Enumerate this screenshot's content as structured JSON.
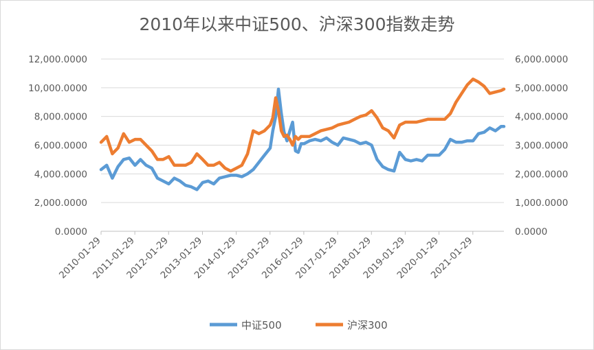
{
  "chart_data": {
    "type": "line",
    "title": "2010年以来中证500、沪深300指数走势",
    "x_tick_labels": [
      "2010-01-29",
      "2011-01-29",
      "2012-01-29",
      "2013-01-29",
      "2014-01-29",
      "2015-01-29",
      "2016-01-29",
      "2017-01-29",
      "2018-01-29",
      "2019-01-29",
      "2020-01-29",
      "2021-01-29"
    ],
    "x_range": [
      "2010-01-29",
      "2021-12-31"
    ],
    "y_left": {
      "min": 0,
      "max": 12000,
      "step": 2000,
      "tick_labels": [
        "0.0000",
        "2,000.0000",
        "4,000.0000",
        "6,000.0000",
        "8,000.0000",
        "10,000.0000",
        "12,000.0000"
      ]
    },
    "y_right": {
      "min": 0,
      "max": 6000,
      "step": 1000,
      "tick_labels": [
        "0.0000",
        "1,000.0000",
        "2,000.0000",
        "3,000.0000",
        "4,000.0000",
        "5,000.0000",
        "6,000.0000"
      ]
    },
    "grid": true,
    "legend_position": "bottom",
    "series": [
      {
        "name": "中证500",
        "axis": "left",
        "color": "#5b9bd5",
        "x": [
          "2010-01-29",
          "2010-03-31",
          "2010-05-31",
          "2010-07-31",
          "2010-09-30",
          "2010-11-30",
          "2011-01-31",
          "2011-03-31",
          "2011-05-31",
          "2011-07-31",
          "2011-09-30",
          "2011-11-30",
          "2012-01-31",
          "2012-03-31",
          "2012-05-31",
          "2012-07-31",
          "2012-09-30",
          "2012-11-30",
          "2013-01-31",
          "2013-03-31",
          "2013-05-31",
          "2013-07-31",
          "2013-09-30",
          "2013-11-30",
          "2014-01-31",
          "2014-03-31",
          "2014-05-31",
          "2014-07-31",
          "2014-09-30",
          "2014-11-30",
          "2015-01-31",
          "2015-02-28",
          "2015-03-31",
          "2015-04-30",
          "2015-05-31",
          "2015-06-30",
          "2015-07-31",
          "2015-08-31",
          "2015-09-30",
          "2015-10-31",
          "2015-11-30",
          "2015-12-31",
          "2016-01-31",
          "2016-03-31",
          "2016-05-31",
          "2016-07-31",
          "2016-09-30",
          "2016-11-30",
          "2017-01-31",
          "2017-03-31",
          "2017-05-31",
          "2017-07-31",
          "2017-09-30",
          "2017-11-30",
          "2018-01-31",
          "2018-03-31",
          "2018-05-31",
          "2018-07-31",
          "2018-09-30",
          "2018-11-30",
          "2019-01-31",
          "2019-03-31",
          "2019-05-31",
          "2019-07-31",
          "2019-09-30",
          "2019-11-30",
          "2020-01-31",
          "2020-03-31",
          "2020-05-31",
          "2020-07-31",
          "2020-09-30",
          "2020-11-30",
          "2021-01-31",
          "2021-03-31",
          "2021-05-31",
          "2021-07-31",
          "2021-09-30",
          "2021-11-30",
          "2021-12-31"
        ],
        "y": [
          4300,
          4600,
          3700,
          4500,
          5000,
          5100,
          4600,
          5000,
          4600,
          4400,
          3700,
          3500,
          3300,
          3700,
          3500,
          3200,
          3100,
          2900,
          3400,
          3500,
          3300,
          3700,
          3800,
          3900,
          3900,
          3800,
          4000,
          4300,
          4800,
          5300,
          5800,
          7000,
          8000,
          9900,
          8200,
          6900,
          6300,
          7000,
          7600,
          5600,
          5500,
          6100,
          6100,
          6300,
          6400,
          6300,
          6500,
          6200,
          6000,
          6500,
          6400,
          6300,
          6100,
          6200,
          6000,
          5000,
          4500,
          4300,
          4200,
          5500,
          5000,
          4900,
          5000,
          4900,
          5300,
          5300,
          5300,
          5700,
          6400,
          6200,
          6200,
          6300,
          6300,
          6800,
          6900,
          7200,
          7000,
          7300,
          7300
        ]
      },
      {
        "name": "沪深300",
        "axis": "right",
        "color": "#ed7d31",
        "x": [
          "2010-01-29",
          "2010-03-31",
          "2010-05-31",
          "2010-07-31",
          "2010-09-30",
          "2010-11-30",
          "2011-01-31",
          "2011-03-31",
          "2011-05-31",
          "2011-07-31",
          "2011-09-30",
          "2011-11-30",
          "2012-01-31",
          "2012-03-31",
          "2012-05-31",
          "2012-07-31",
          "2012-09-30",
          "2012-11-30",
          "2013-01-31",
          "2013-03-31",
          "2013-05-31",
          "2013-07-31",
          "2013-09-30",
          "2013-11-30",
          "2014-01-31",
          "2014-03-31",
          "2014-05-31",
          "2014-07-31",
          "2014-09-30",
          "2014-11-30",
          "2015-01-31",
          "2015-02-28",
          "2015-03-31",
          "2015-04-30",
          "2015-05-31",
          "2015-06-30",
          "2015-07-31",
          "2015-08-31",
          "2015-09-30",
          "2015-10-31",
          "2015-11-30",
          "2015-12-31",
          "2016-01-31",
          "2016-03-31",
          "2016-05-31",
          "2016-07-31",
          "2016-09-30",
          "2016-11-30",
          "2017-01-31",
          "2017-03-31",
          "2017-05-31",
          "2017-07-31",
          "2017-09-30",
          "2017-11-30",
          "2018-01-31",
          "2018-03-31",
          "2018-05-31",
          "2018-07-31",
          "2018-09-30",
          "2018-11-30",
          "2019-01-31",
          "2019-03-31",
          "2019-05-31",
          "2019-07-31",
          "2019-09-30",
          "2019-11-30",
          "2020-01-31",
          "2020-03-31",
          "2020-05-31",
          "2020-07-31",
          "2020-09-30",
          "2020-11-30",
          "2021-01-31",
          "2021-03-31",
          "2021-05-31",
          "2021-07-31",
          "2021-09-30",
          "2021-11-30",
          "2021-12-31"
        ],
        "y": [
          3100,
          3300,
          2700,
          2900,
          3400,
          3100,
          3200,
          3200,
          3000,
          2800,
          2500,
          2500,
          2600,
          2300,
          2300,
          2300,
          2400,
          2700,
          2500,
          2300,
          2300,
          2400,
          2200,
          2100,
          2200,
          2300,
          2700,
          3500,
          3400,
          3500,
          3700,
          3950,
          4650,
          4200,
          3500,
          3300,
          3350,
          3200,
          3000,
          3300,
          3200,
          3300,
          3300,
          3300,
          3400,
          3500,
          3550,
          3600,
          3700,
          3750,
          3800,
          3900,
          4000,
          4050,
          4200,
          3950,
          3600,
          3500,
          3250,
          3700,
          3800,
          3800,
          3800,
          3850,
          3900,
          3900,
          3900,
          3900,
          4100,
          4500,
          4800,
          5100,
          5300,
          5200,
          5050,
          4800,
          4850,
          4900,
          4950
        ]
      }
    ]
  }
}
